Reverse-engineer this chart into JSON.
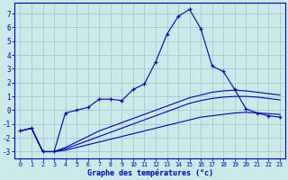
{
  "title": "Graphe des températures (°c)",
  "bg_color": "#cce8e8",
  "grid_color": "#99cccc",
  "line_color": "#0000bb",
  "x_values": [
    0,
    1,
    2,
    3,
    4,
    5,
    6,
    7,
    8,
    9,
    10,
    11,
    12,
    13,
    14,
    15,
    16,
    17,
    18,
    19,
    20,
    21,
    22,
    23
  ],
  "x_labels": [
    "0",
    "1",
    "2",
    "3",
    "4",
    "5",
    "6",
    "7",
    "8",
    "9",
    "10",
    "11",
    "12",
    "13",
    "14",
    "15",
    "16",
    "17",
    "18",
    "19",
    "20",
    "21",
    "22",
    "23"
  ],
  "main_line": [
    -1.5,
    -1.3,
    -3.0,
    -3.0,
    -0.2,
    0.0,
    0.2,
    0.8,
    0.8,
    0.7,
    1.5,
    1.9,
    3.5,
    5.5,
    6.8,
    7.3,
    5.9,
    3.2,
    2.8,
    1.5,
    0.1,
    -0.2,
    -0.4,
    -0.5
  ],
  "line_ref1": [
    -1.5,
    -1.3,
    -3.0,
    -3.0,
    -2.9,
    -2.7,
    -2.5,
    -2.3,
    -2.1,
    -1.9,
    -1.7,
    -1.5,
    -1.3,
    -1.1,
    -0.9,
    -0.7,
    -0.5,
    -0.4,
    -0.3,
    -0.2,
    -0.15,
    -0.2,
    -0.25,
    -0.3
  ],
  "line_ref2": [
    -1.5,
    -1.3,
    -3.0,
    -3.0,
    -2.8,
    -2.5,
    -2.2,
    -1.9,
    -1.6,
    -1.3,
    -1.0,
    -0.7,
    -0.4,
    -0.1,
    0.2,
    0.5,
    0.7,
    0.85,
    0.95,
    1.0,
    1.0,
    0.95,
    0.85,
    0.75
  ],
  "line_ref3": [
    -1.5,
    -1.3,
    -3.0,
    -3.0,
    -2.7,
    -2.3,
    -1.9,
    -1.5,
    -1.2,
    -0.9,
    -0.6,
    -0.3,
    0.0,
    0.3,
    0.6,
    0.9,
    1.1,
    1.3,
    1.4,
    1.45,
    1.4,
    1.3,
    1.2,
    1.1
  ],
  "ylim": [
    -3.5,
    7.8
  ],
  "yticks": [
    -3,
    -2,
    -1,
    0,
    1,
    2,
    3,
    4,
    5,
    6,
    7
  ],
  "xlim": [
    -0.5,
    23.5
  ]
}
